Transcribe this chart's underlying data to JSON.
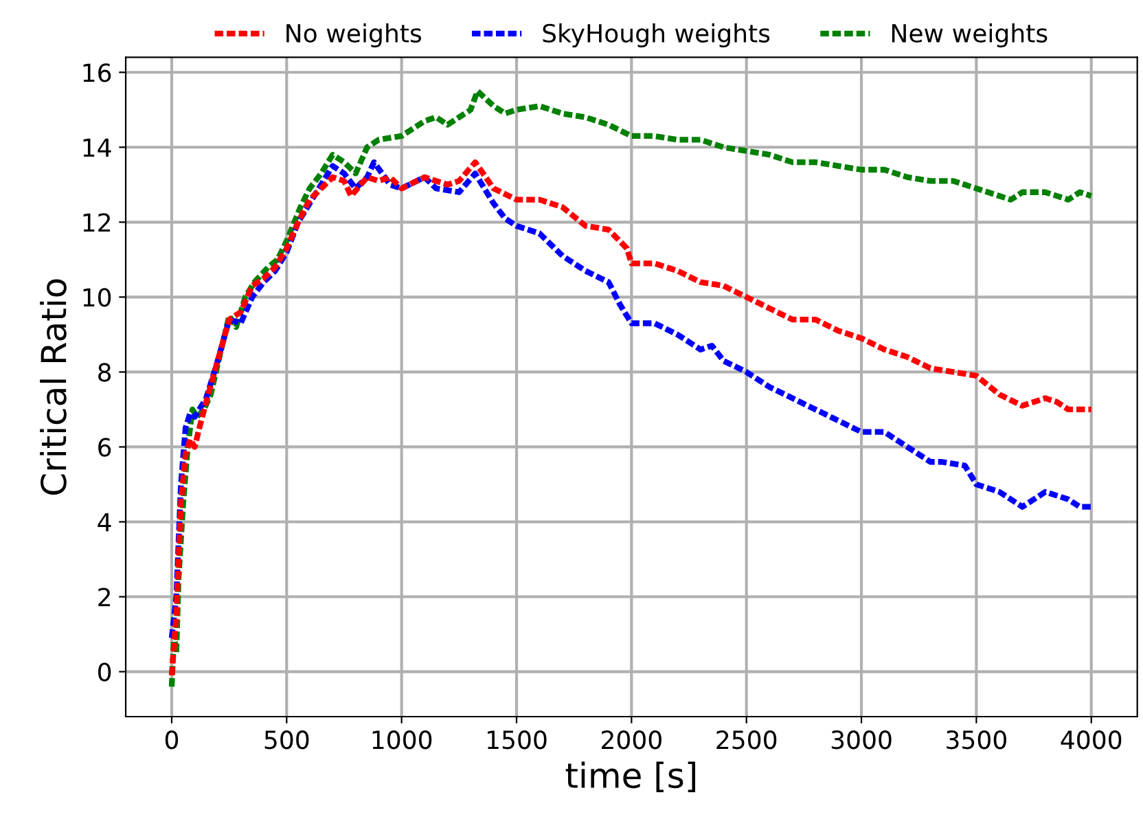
{
  "chart_data": {
    "type": "line",
    "xlabel": "time [s]",
    "ylabel": "Critical Ratio",
    "xlim": [
      -200,
      4200
    ],
    "ylim": [
      -1.2,
      16.4
    ],
    "xticks": [
      0,
      500,
      1000,
      1500,
      2000,
      2500,
      3000,
      3500,
      4000
    ],
    "yticks": [
      0,
      2,
      4,
      6,
      8,
      10,
      12,
      14,
      16
    ],
    "grid": true,
    "legend": "top",
    "line_style": "dashed",
    "marker": "none",
    "series": [
      {
        "name": "No weights",
        "color": "#ff0000",
        "x": [
          0,
          20,
          40,
          60,
          80,
          100,
          120,
          150,
          200,
          250,
          300,
          350,
          400,
          450,
          500,
          550,
          600,
          650,
          700,
          750,
          780,
          850,
          900,
          950,
          1000,
          1100,
          1200,
          1250,
          1320,
          1400,
          1500,
          1600,
          1700,
          1800,
          1900,
          1980,
          2000,
          2100,
          2200,
          2300,
          2400,
          2500,
          2600,
          2700,
          2800,
          2900,
          3000,
          3100,
          3200,
          3300,
          3400,
          3500,
          3600,
          3700,
          3800,
          3850,
          3900,
          4000
        ],
        "values": [
          -0.1,
          1.5,
          4.5,
          5.8,
          6.2,
          6.0,
          6.5,
          7.2,
          8.3,
          9.4,
          9.6,
          10.3,
          10.5,
          10.8,
          11.3,
          12.0,
          12.6,
          12.9,
          13.2,
          13.1,
          12.7,
          13.2,
          13.1,
          13.2,
          12.9,
          13.2,
          13.0,
          13.1,
          13.6,
          12.9,
          12.6,
          12.6,
          12.4,
          11.9,
          11.8,
          11.3,
          10.9,
          10.9,
          10.7,
          10.4,
          10.3,
          10.0,
          9.7,
          9.4,
          9.4,
          9.1,
          8.9,
          8.6,
          8.4,
          8.1,
          8.0,
          7.9,
          7.4,
          7.1,
          7.3,
          7.2,
          7.0,
          7.0
        ]
      },
      {
        "name": "SkyHough weights",
        "color": "#0000ff",
        "x": [
          0,
          20,
          40,
          60,
          80,
          100,
          150,
          200,
          250,
          300,
          350,
          400,
          450,
          500,
          550,
          600,
          650,
          700,
          750,
          800,
          850,
          880,
          950,
          1000,
          1100,
          1150,
          1250,
          1320,
          1400,
          1450,
          1500,
          1600,
          1700,
          1800,
          1900,
          1950,
          2000,
          2100,
          2200,
          2300,
          2350,
          2400,
          2500,
          2600,
          2700,
          2800,
          2900,
          3000,
          3100,
          3200,
          3300,
          3350,
          3450,
          3500,
          3600,
          3700,
          3800,
          3900,
          3950,
          4000
        ],
        "values": [
          0.9,
          2,
          5,
          6.5,
          6.9,
          6.8,
          7.3,
          8.3,
          9.4,
          9.3,
          10.0,
          10.4,
          10.7,
          11.2,
          12.0,
          12.5,
          13.0,
          13.5,
          13.3,
          12.9,
          13.2,
          13.6,
          13.0,
          12.9,
          13.2,
          12.9,
          12.8,
          13.3,
          12.5,
          12.1,
          11.9,
          11.7,
          11.1,
          10.7,
          10.4,
          9.8,
          9.3,
          9.3,
          9.0,
          8.6,
          8.7,
          8.3,
          8.0,
          7.6,
          7.3,
          7.0,
          6.7,
          6.4,
          6.4,
          6.0,
          5.6,
          5.6,
          5.5,
          5.0,
          4.8,
          4.4,
          4.8,
          4.6,
          4.4,
          4.4
        ]
      },
      {
        "name": "New weights",
        "color": "#008000",
        "x": [
          0,
          10,
          20,
          30,
          50,
          70,
          90,
          110,
          140,
          170,
          200,
          250,
          280,
          320,
          360,
          420,
          460,
          500,
          560,
          600,
          650,
          700,
          750,
          800,
          850,
          900,
          1000,
          1100,
          1150,
          1200,
          1300,
          1330,
          1400,
          1450,
          1500,
          1600,
          1700,
          1800,
          1900,
          2000,
          2100,
          2200,
          2300,
          2400,
          2500,
          2600,
          2700,
          2800,
          2900,
          3000,
          3100,
          3200,
          3300,
          3400,
          3500,
          3600,
          3650,
          3700,
          3800,
          3900,
          3950,
          4000
        ],
        "values": [
          -0.4,
          1.0,
          0.5,
          2.5,
          4.5,
          6.0,
          7.0,
          6.8,
          7.0,
          7.4,
          8.2,
          9.5,
          9.2,
          10.0,
          10.4,
          10.8,
          11.0,
          11.5,
          12.4,
          12.9,
          13.3,
          13.8,
          13.6,
          13.3,
          14.0,
          14.2,
          14.3,
          14.7,
          14.8,
          14.6,
          15.0,
          15.5,
          15.1,
          14.9,
          15.0,
          15.1,
          14.9,
          14.8,
          14.6,
          14.3,
          14.3,
          14.2,
          14.2,
          14.0,
          13.9,
          13.8,
          13.6,
          13.6,
          13.5,
          13.4,
          13.4,
          13.2,
          13.1,
          13.1,
          12.9,
          12.7,
          12.6,
          12.8,
          12.8,
          12.6,
          12.8,
          12.7
        ]
      }
    ]
  }
}
